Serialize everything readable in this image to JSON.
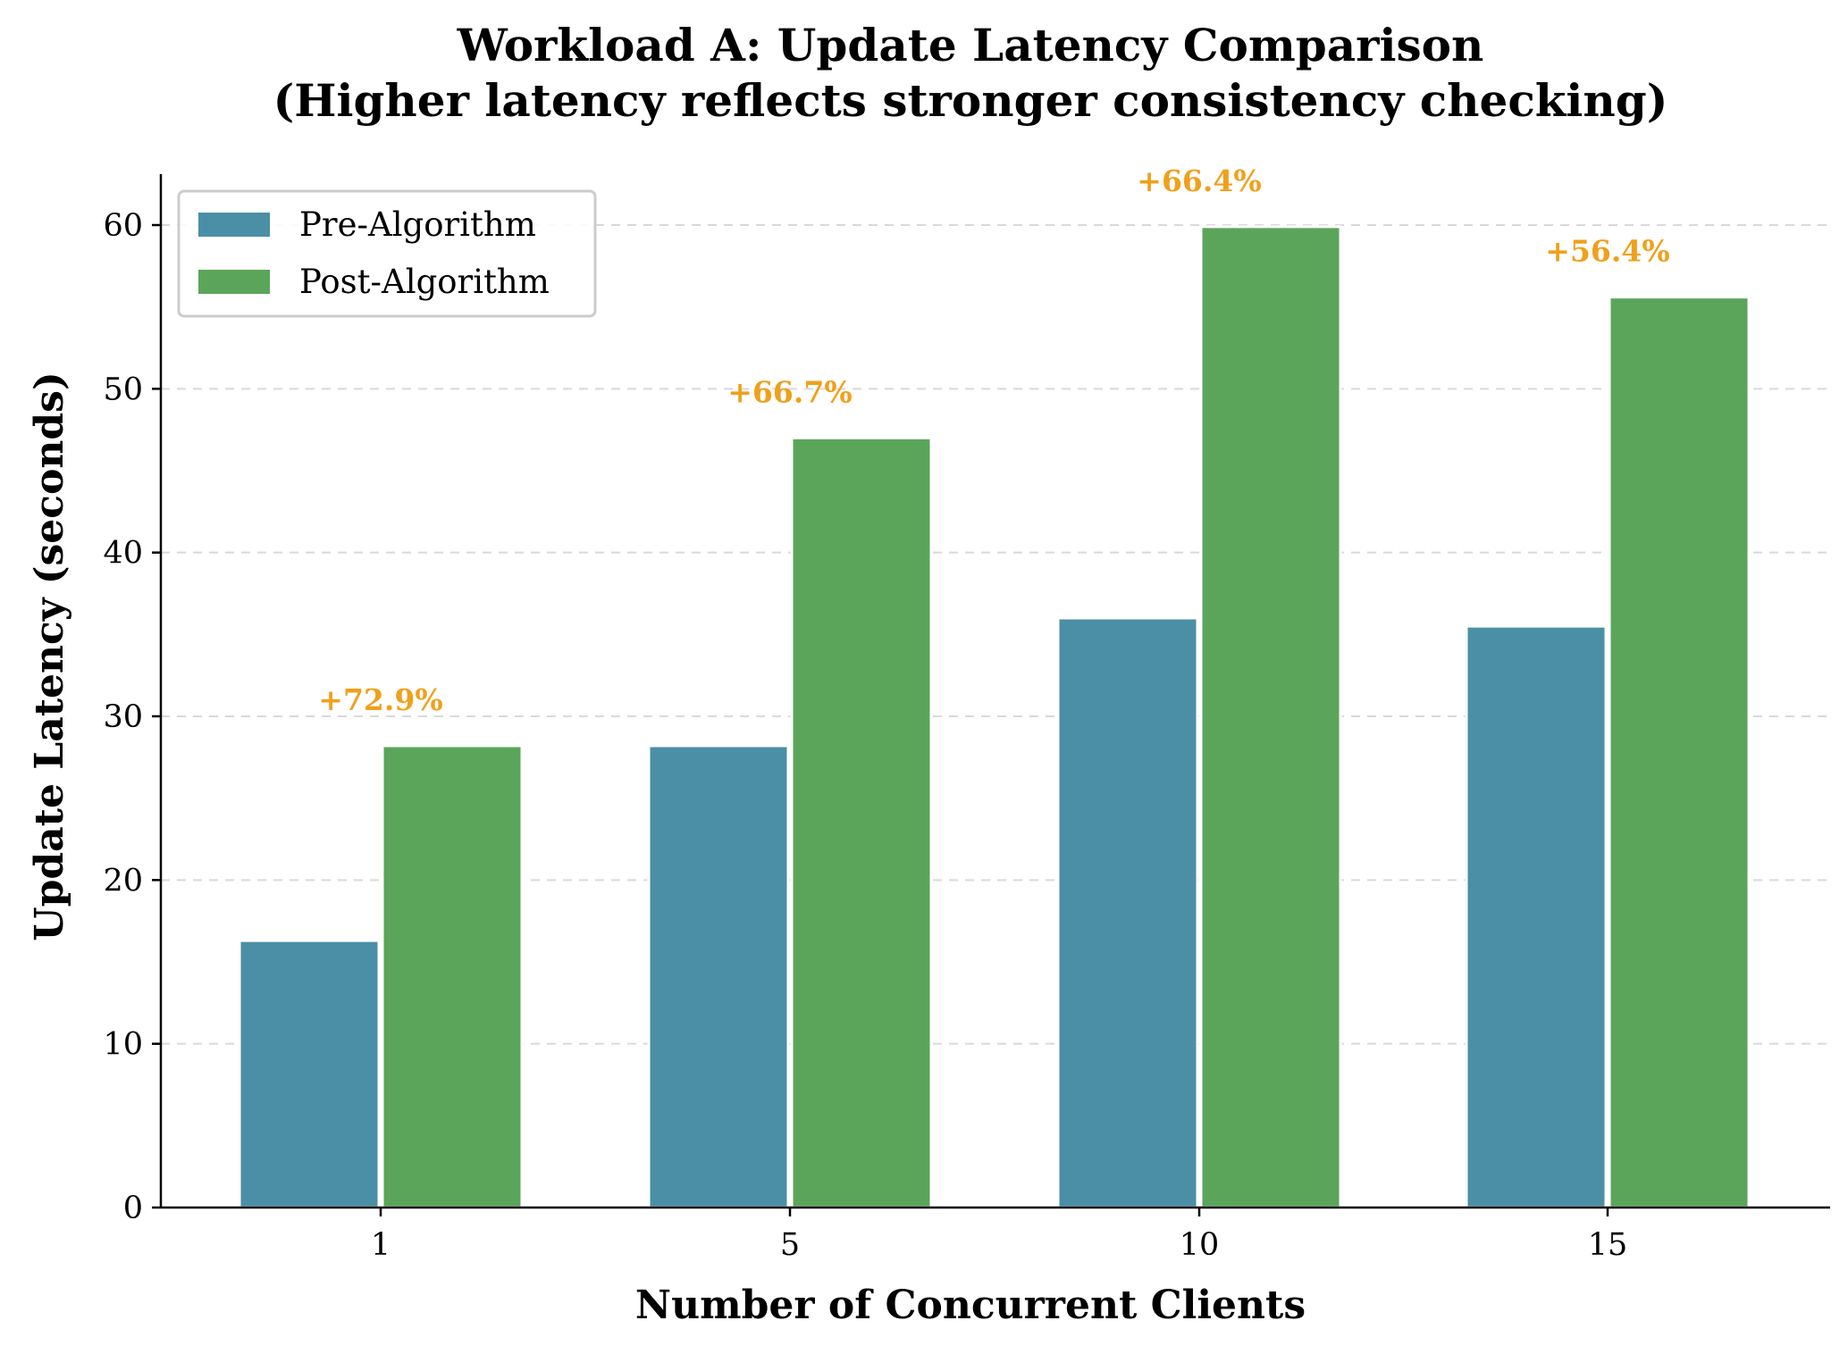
{
  "chart_data": {
    "type": "bar",
    "title_line1": "Workload A: Update Latency Comparison",
    "title_line2": "(Higher latency reflects stronger consistency checking)",
    "xlabel": "Number of Concurrent Clients",
    "ylabel": "Update Latency (seconds)",
    "categories": [
      "1",
      "5",
      "10",
      "15"
    ],
    "ylim": [
      0,
      63
    ],
    "yticks": [
      0,
      10,
      20,
      30,
      40,
      50,
      60
    ],
    "grid": "horizontal-dashed",
    "legend_position": "top-left",
    "series": [
      {
        "name": "Pre-Algorithm",
        "color": "#4a8fa6",
        "values": [
          16.3,
          28.2,
          36.0,
          35.5
        ]
      },
      {
        "name": "Post-Algorithm",
        "color": "#5ba55a",
        "values": [
          28.2,
          47.0,
          59.9,
          55.6
        ]
      }
    ],
    "annotations": [
      "+72.9%",
      "+66.7%",
      "+66.4%",
      "+56.4%"
    ],
    "annotation_color": "#f0a01c"
  }
}
